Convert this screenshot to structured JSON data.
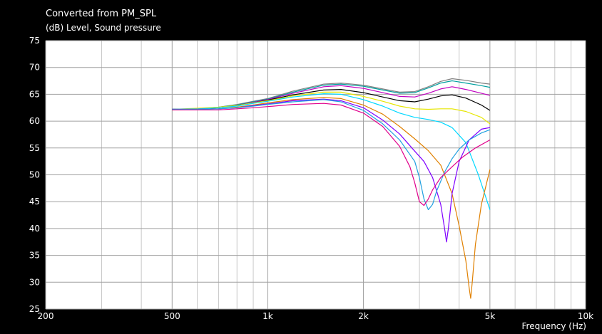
{
  "window": {
    "title": "Converted from PM_SPL",
    "unit_label": "(dB)  Level, Sound pressure",
    "x_axis_label": "Frequency  (Hz)"
  },
  "chart_data": {
    "type": "line",
    "title": "Converted from PM_SPL",
    "ylabel": "(dB)  Level, Sound pressure",
    "xlabel": "Frequency  (Hz)",
    "x_scale": "log",
    "xlim": [
      200,
      10000
    ],
    "ylim": [
      25,
      75
    ],
    "grid": true,
    "background": "#ffffff",
    "x_ticks": [
      {
        "v": 200,
        "label": "200"
      },
      {
        "v": 500,
        "label": "500"
      },
      {
        "v": 1000,
        "label": "1k"
      },
      {
        "v": 2000,
        "label": "2k"
      },
      {
        "v": 5000,
        "label": "5k"
      },
      {
        "v": 10000,
        "label": "10k"
      }
    ],
    "x_minor_grid": [
      300,
      400,
      600,
      700,
      800,
      900,
      3000,
      4000,
      6000,
      7000,
      8000,
      9000
    ],
    "y_ticks": [
      75,
      70,
      65,
      60,
      55,
      50,
      45,
      40,
      35,
      30,
      25
    ],
    "series": [
      {
        "color": "#808080",
        "x": [
          500,
          600,
          700,
          800,
          900,
          1000,
          1200,
          1500,
          1700,
          2000,
          2300,
          2600,
          2900,
          3200,
          3500,
          3800,
          4200,
          4700,
          5000
        ],
        "y": [
          62.2,
          62.3,
          62.6,
          63.1,
          63.7,
          64.2,
          65.6,
          66.9,
          67.1,
          66.7,
          66.0,
          65.4,
          65.5,
          66.4,
          67.4,
          67.9,
          67.6,
          67.1,
          66.9
        ]
      },
      {
        "color": "#00a0a0",
        "x": [
          500,
          600,
          700,
          800,
          900,
          1000,
          1200,
          1500,
          1700,
          2000,
          2300,
          2600,
          2900,
          3200,
          3500,
          3800,
          4200,
          4700,
          5000
        ],
        "y": [
          62.2,
          62.3,
          62.6,
          63.0,
          63.6,
          64.1,
          65.4,
          66.7,
          66.9,
          66.5,
          65.8,
          65.2,
          65.3,
          66.2,
          67.1,
          67.5,
          67.1,
          66.6,
          66.3
        ]
      },
      {
        "color": "#c000c0",
        "x": [
          500,
          600,
          700,
          800,
          900,
          1000,
          1200,
          1500,
          1700,
          2000,
          2300,
          2600,
          2900,
          3200,
          3500,
          3800,
          4200,
          4700,
          5000
        ],
        "y": [
          62.2,
          62.3,
          62.5,
          62.9,
          63.5,
          64.0,
          65.2,
          66.4,
          66.6,
          66.1,
          65.3,
          64.6,
          64.5,
          65.2,
          66.0,
          66.4,
          65.9,
          65.2,
          64.8
        ]
      },
      {
        "color": "#000000",
        "x": [
          500,
          600,
          700,
          800,
          900,
          1000,
          1200,
          1500,
          1700,
          2000,
          2300,
          2600,
          2900,
          3200,
          3500,
          3800,
          4200,
          4700,
          5000
        ],
        "y": [
          62.2,
          62.3,
          62.5,
          62.9,
          63.4,
          63.9,
          64.9,
          65.8,
          65.9,
          65.3,
          64.5,
          63.8,
          63.6,
          64.1,
          64.7,
          64.9,
          64.3,
          63.0,
          62.0
        ]
      },
      {
        "color": "#e6e600",
        "x": [
          500,
          600,
          700,
          800,
          900,
          1000,
          1200,
          1500,
          1700,
          2000,
          2300,
          2600,
          2900,
          3200,
          3500,
          3800,
          4200,
          4700,
          5000
        ],
        "y": [
          62.2,
          62.4,
          62.6,
          62.9,
          63.4,
          63.8,
          64.7,
          65.4,
          65.4,
          64.6,
          63.7,
          62.8,
          62.3,
          62.2,
          62.3,
          62.3,
          61.8,
          60.7,
          59.5
        ]
      },
      {
        "color": "#00d8ff",
        "x": [
          500,
          600,
          700,
          800,
          900,
          1000,
          1200,
          1500,
          1700,
          2000,
          2300,
          2600,
          2900,
          3200,
          3500,
          3800,
          4200,
          4600,
          5000
        ],
        "y": [
          62.2,
          62.3,
          62.5,
          62.8,
          63.3,
          63.7,
          64.5,
          65.1,
          65.0,
          64.0,
          62.8,
          61.5,
          60.7,
          60.3,
          59.8,
          58.8,
          56.0,
          50.0,
          43.5
        ]
      },
      {
        "color": "#e08000",
        "x": [
          500,
          600,
          700,
          800,
          900,
          1000,
          1200,
          1500,
          1700,
          2000,
          2300,
          2600,
          2900,
          3200,
          3500,
          3800,
          4000,
          4200,
          4300,
          4350,
          4400,
          4500,
          4700,
          5000
        ],
        "y": [
          62.1,
          62.2,
          62.3,
          62.6,
          63.0,
          63.4,
          64.0,
          64.4,
          64.2,
          63.0,
          61.3,
          59.0,
          56.7,
          54.5,
          51.8,
          46.5,
          40.5,
          34.0,
          29.0,
          27.0,
          30.0,
          37.0,
          44.5,
          51.0
        ]
      },
      {
        "color": "#8000ff",
        "x": [
          500,
          600,
          700,
          800,
          900,
          1000,
          1200,
          1500,
          1700,
          2000,
          2300,
          2600,
          2900,
          3100,
          3300,
          3500,
          3600,
          3650,
          3700,
          3800,
          4000,
          4300,
          4700,
          5000
        ],
        "y": [
          62.2,
          62.2,
          62.3,
          62.5,
          62.9,
          63.2,
          63.8,
          64.1,
          63.8,
          62.5,
          60.2,
          57.6,
          54.4,
          52.5,
          49.5,
          44.5,
          40.0,
          37.5,
          40.0,
          46.5,
          52.5,
          56.5,
          58.5,
          58.8
        ]
      },
      {
        "color": "#20a0e0",
        "x": [
          500,
          600,
          700,
          800,
          900,
          1000,
          1200,
          1500,
          1700,
          2000,
          2300,
          2600,
          2900,
          3000,
          3100,
          3200,
          3300,
          3400,
          3600,
          3800,
          4000,
          4300,
          4700,
          5000
        ],
        "y": [
          62.2,
          62.2,
          62.3,
          62.5,
          62.8,
          63.1,
          63.6,
          64.0,
          63.6,
          62.0,
          59.5,
          56.5,
          52.5,
          49.5,
          45.5,
          43.5,
          44.5,
          47.0,
          50.5,
          53.0,
          54.8,
          56.5,
          57.8,
          58.4
        ]
      },
      {
        "color": "#e0008c",
        "x": [
          500,
          600,
          700,
          800,
          900,
          1000,
          1200,
          1500,
          1700,
          2000,
          2300,
          2600,
          2800,
          2900,
          3000,
          3100,
          3200,
          3300,
          3500,
          3800,
          4100,
          4500,
          5000
        ],
        "y": [
          62.1,
          62.1,
          62.1,
          62.3,
          62.5,
          62.7,
          63.1,
          63.3,
          63.0,
          61.5,
          59.0,
          55.3,
          51.5,
          48.5,
          45.0,
          44.3,
          45.5,
          47.2,
          49.5,
          51.5,
          53.3,
          55.0,
          56.5
        ]
      }
    ]
  }
}
